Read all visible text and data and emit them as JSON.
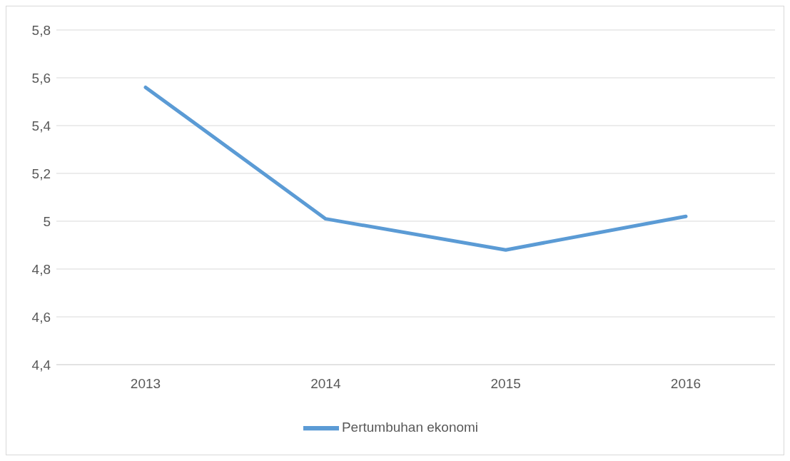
{
  "chart_data": {
    "type": "line",
    "categories": [
      "2013",
      "2014",
      "2015",
      "2016"
    ],
    "series": [
      {
        "name": "Pertumbuhan ekonomi",
        "color": "#5b9bd5",
        "values": [
          5.56,
          5.01,
          4.88,
          5.02
        ]
      }
    ],
    "ylim": [
      4.4,
      5.8
    ],
    "yticks": [
      {
        "value": 4.4,
        "label": "4,4"
      },
      {
        "value": 4.6,
        "label": "4,6"
      },
      {
        "value": 4.8,
        "label": "4,8"
      },
      5,
      {
        "value": 5.2,
        "label": "5,2"
      },
      {
        "value": 5.4,
        "label": "5,4"
      },
      {
        "value": 5.6,
        "label": "5,6"
      },
      {
        "value": 5.8,
        "label": "5,8"
      }
    ],
    "grid": "y",
    "legend": "bottom",
    "marker": "none",
    "line_style": "solid"
  }
}
